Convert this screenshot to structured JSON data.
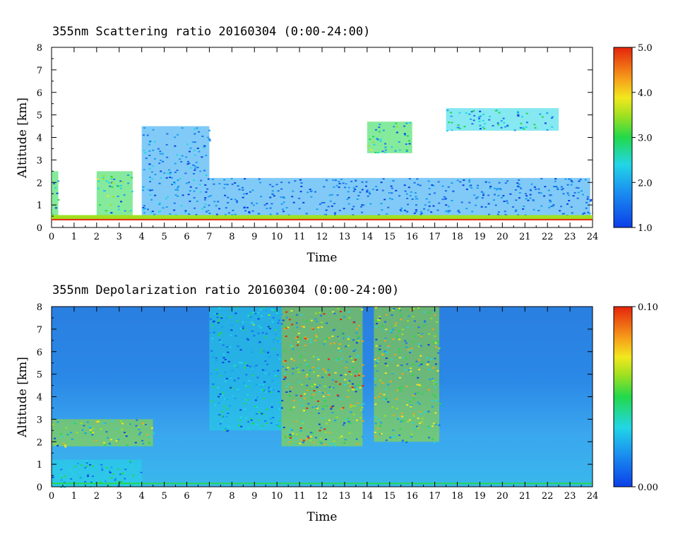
{
  "chart_data": [
    {
      "type": "heatmap",
      "title": "355nm Scattering ratio  20160304 (0:00-24:00)",
      "xlabel": "Time",
      "ylabel": "Altitude [km]",
      "xlim": [
        0,
        24
      ],
      "ylim": [
        0,
        8
      ],
      "x_ticks": [
        "0",
        "1",
        "2",
        "3",
        "4",
        "5",
        "6",
        "7",
        "8",
        "9",
        "10",
        "11",
        "12",
        "13",
        "14",
        "15",
        "16",
        "17",
        "18",
        "19",
        "20",
        "21",
        "22",
        "23",
        "24"
      ],
      "y_ticks": [
        "0",
        "1",
        "2",
        "3",
        "4",
        "5",
        "6",
        "7",
        "8"
      ],
      "colorbar": {
        "range": [
          1.0,
          5.0
        ],
        "labels": [
          "1.0",
          "2.0",
          "3.0",
          "4.0",
          "5.0"
        ]
      },
      "cloud_regions": [
        {
          "x": [
            0.0,
            0.3
          ],
          "y": [
            0.4,
            2.5
          ],
          "value": 3.5
        },
        {
          "x": [
            2.0,
            3.6
          ],
          "y": [
            0.4,
            2.5
          ],
          "value": 3.5
        },
        {
          "x": [
            4.0,
            7.0
          ],
          "y": [
            0.4,
            4.5
          ],
          "value": 2.5
        },
        {
          "x": [
            7.0,
            23.9
          ],
          "y": [
            0.4,
            2.2
          ],
          "value": 2.0
        },
        {
          "x": [
            14.0,
            16.0
          ],
          "y": [
            3.3,
            4.7
          ],
          "value": 3.5
        },
        {
          "x": [
            17.5,
            22.5
          ],
          "y": [
            4.3,
            5.3
          ],
          "value": 3.0
        }
      ],
      "colors": {
        "low": "#1a4fd6",
        "mid": "#1ed27a",
        "high": "#e8380e"
      }
    },
    {
      "type": "heatmap",
      "title": "355nm Depolarization ratio  20160304 (0:00-24:00)",
      "xlabel": "Time",
      "ylabel": "Altitude [km]",
      "xlim": [
        0,
        24
      ],
      "ylim": [
        0,
        8
      ],
      "x_ticks": [
        "0",
        "1",
        "2",
        "3",
        "4",
        "5",
        "6",
        "7",
        "8",
        "9",
        "10",
        "11",
        "12",
        "13",
        "14",
        "15",
        "16",
        "17",
        "18",
        "19",
        "20",
        "21",
        "22",
        "23",
        "24"
      ],
      "y_ticks": [
        "0",
        "1",
        "2",
        "3",
        "4",
        "5",
        "6",
        "7",
        "8"
      ],
      "colorbar": {
        "range": [
          0.0,
          0.1
        ],
        "labels": [
          "0.00",
          "0.10"
        ]
      },
      "high_depol_regions": [
        {
          "x": [
            10.2,
            13.8
          ],
          "y": [
            1.8,
            8.0
          ],
          "value": 0.09
        },
        {
          "x": [
            14.3,
            17.2
          ],
          "y": [
            2.0,
            8.0
          ],
          "value": 0.08
        },
        {
          "x": [
            7.0,
            10.2
          ],
          "y": [
            2.5,
            8.0
          ],
          "value": 0.05
        },
        {
          "x": [
            0.0,
            4.5
          ],
          "y": [
            1.8,
            3.0
          ],
          "value": 0.08
        },
        {
          "x": [
            0.0,
            4.0
          ],
          "y": [
            0.0,
            1.2
          ],
          "value": 0.05
        }
      ],
      "colors": {
        "low": "#1a4fd6",
        "mid": "#22cfe0",
        "high": "#e8380e"
      }
    }
  ]
}
